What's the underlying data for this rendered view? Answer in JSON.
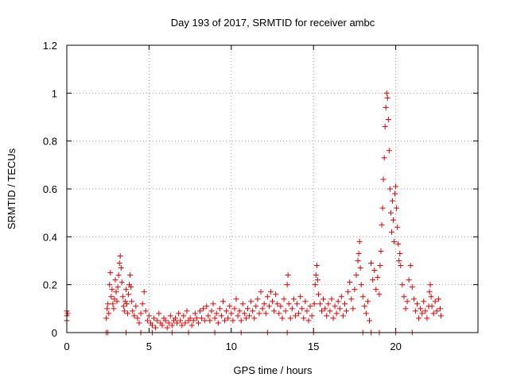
{
  "chart_data": {
    "type": "scatter",
    "title": "Day 193 of 2017, SRMTID for receiver ambc",
    "xlabel": "GPS time / hours",
    "ylabel": "SRMTID / TECUs",
    "xlim": [
      0,
      25
    ],
    "ylim": [
      0,
      1.2
    ],
    "x_ticks": [
      0,
      5,
      10,
      15,
      20
    ],
    "x_tick_labels": [
      "0",
      "5",
      "10",
      "15",
      "20"
    ],
    "y_ticks": [
      0,
      0.2,
      0.4,
      0.6,
      0.8,
      1.0,
      1.2
    ],
    "y_tick_labels": [
      "0",
      "0.2",
      "0.4",
      "0.6",
      "0.8",
      "1",
      "1.2"
    ],
    "grid": true,
    "marker": "plus",
    "marker_color": "#e60000",
    "legend": "none",
    "series": [
      {
        "values_xy": [
          [
            0.0,
            0.09
          ],
          [
            0.0,
            0.07
          ],
          [
            0.0,
            0.05
          ],
          [
            0.05,
            0.08
          ],
          [
            2.4,
            0.0
          ],
          [
            2.4,
            0.06
          ],
          [
            2.45,
            0.1
          ],
          [
            2.5,
            0.12
          ],
          [
            2.55,
            0.08
          ],
          [
            2.6,
            0.2
          ],
          [
            2.65,
            0.25
          ],
          [
            2.7,
            0.15
          ],
          [
            2.75,
            0.18
          ],
          [
            2.8,
            0.12
          ],
          [
            2.85,
            0.1
          ],
          [
            2.9,
            0.14
          ],
          [
            2.95,
            0.22
          ],
          [
            3.0,
            0.17
          ],
          [
            3.05,
            0.13
          ],
          [
            3.1,
            0.19
          ],
          [
            3.15,
            0.24
          ],
          [
            3.2,
            0.29
          ],
          [
            3.25,
            0.32
          ],
          [
            3.3,
            0.27
          ],
          [
            3.35,
            0.21
          ],
          [
            3.4,
            0.15
          ],
          [
            3.45,
            0.11
          ],
          [
            3.5,
            0.09
          ],
          [
            3.55,
            0.13
          ],
          [
            3.6,
            0.18
          ],
          [
            3.65,
            0.12
          ],
          [
            3.7,
            0.08
          ],
          [
            3.75,
            0.16
          ],
          [
            3.8,
            0.2
          ],
          [
            3.85,
            0.24
          ],
          [
            3.9,
            0.19
          ],
          [
            3.95,
            0.13
          ],
          [
            4.0,
            0.09
          ],
          [
            4.1,
            0.07
          ],
          [
            4.2,
            0.11
          ],
          [
            4.3,
            0.06
          ],
          [
            4.4,
            0.04
          ],
          [
            4.5,
            0.08
          ],
          [
            4.6,
            0.12
          ],
          [
            4.7,
            0.17
          ],
          [
            4.8,
            0.09
          ],
          [
            4.9,
            0.05
          ],
          [
            5.0,
            0.07
          ],
          [
            5.1,
            0.04
          ],
          [
            5.2,
            0.03
          ],
          [
            5.3,
            0.06
          ],
          [
            5.4,
            0.02
          ],
          [
            5.5,
            0.05
          ],
          [
            5.6,
            0.08
          ],
          [
            5.7,
            0.04
          ],
          [
            5.8,
            0.03
          ],
          [
            5.9,
            0.06
          ],
          [
            6.0,
            0.05
          ],
          [
            6.1,
            0.02
          ],
          [
            6.2,
            0.04
          ],
          [
            6.3,
            0.07
          ],
          [
            6.4,
            0.03
          ],
          [
            6.5,
            0.05
          ],
          [
            6.6,
            0.06
          ],
          [
            6.7,
            0.04
          ],
          [
            6.8,
            0.08
          ],
          [
            6.9,
            0.05
          ],
          [
            7.0,
            0.03
          ],
          [
            7.1,
            0.07
          ],
          [
            7.2,
            0.04
          ],
          [
            7.3,
            0.09
          ],
          [
            7.4,
            0.05
          ],
          [
            7.5,
            0.06
          ],
          [
            7.6,
            0.03
          ],
          [
            7.7,
            0.05
          ],
          [
            7.8,
            0.08
          ],
          [
            7.9,
            0.06
          ],
          [
            8.0,
            0.04
          ],
          [
            8.1,
            0.09
          ],
          [
            8.2,
            0.06
          ],
          [
            8.3,
            0.1
          ],
          [
            8.4,
            0.05
          ],
          [
            8.5,
            0.11
          ],
          [
            8.6,
            0.07
          ],
          [
            8.7,
            0.05
          ],
          [
            8.8,
            0.09
          ],
          [
            8.9,
            0.12
          ],
          [
            9.0,
            0.06
          ],
          [
            9.1,
            0.08
          ],
          [
            9.2,
            0.04
          ],
          [
            9.3,
            0.1
          ],
          [
            9.4,
            0.07
          ],
          [
            9.5,
            0.13
          ],
          [
            9.6,
            0.05
          ],
          [
            9.7,
            0.09
          ],
          [
            9.8,
            0.06
          ],
          [
            9.9,
            0.11
          ],
          [
            10.0,
            0.08
          ],
          [
            10.1,
            0.05
          ],
          [
            10.2,
            0.1
          ],
          [
            10.3,
            0.14
          ],
          [
            10.4,
            0.07
          ],
          [
            10.5,
            0.09
          ],
          [
            10.6,
            0.05
          ],
          [
            10.7,
            0.12
          ],
          [
            10.8,
            0.08
          ],
          [
            10.9,
            0.06
          ],
          [
            11.0,
            0.1
          ],
          [
            11.1,
            0.07
          ],
          [
            11.2,
            0.13
          ],
          [
            11.3,
            0.09
          ],
          [
            11.4,
            0.06
          ],
          [
            11.5,
            0.11
          ],
          [
            11.6,
            0.14
          ],
          [
            11.7,
            0.08
          ],
          [
            11.8,
            0.17
          ],
          [
            11.9,
            0.1
          ],
          [
            12.0,
            0.12
          ],
          [
            12.1,
            0.08
          ],
          [
            12.2,
            0.15
          ],
          [
            12.3,
            0.11
          ],
          [
            12.4,
            0.17
          ],
          [
            12.5,
            0.13
          ],
          [
            12.6,
            0.09
          ],
          [
            12.7,
            0.16
          ],
          [
            12.8,
            0.12
          ],
          [
            12.9,
            0.08
          ],
          [
            13.0,
            0.11
          ],
          [
            13.1,
            0.06
          ],
          [
            13.2,
            0.14
          ],
          [
            13.3,
            0.09
          ],
          [
            13.4,
            0.2
          ],
          [
            13.45,
            0.24
          ],
          [
            13.5,
            0.12
          ],
          [
            13.6,
            0.06
          ],
          [
            13.7,
            0.1
          ],
          [
            13.8,
            0.14
          ],
          [
            13.9,
            0.07
          ],
          [
            14.0,
            0.12
          ],
          [
            14.1,
            0.08
          ],
          [
            14.2,
            0.15
          ],
          [
            14.3,
            0.1
          ],
          [
            14.4,
            0.06
          ],
          [
            14.5,
            0.13
          ],
          [
            14.6,
            0.09
          ],
          [
            14.7,
            0.05
          ],
          [
            14.8,
            0.11
          ],
          [
            14.9,
            0.07
          ],
          [
            15.0,
            0.0
          ],
          [
            15.05,
            0.12
          ],
          [
            15.1,
            0.2
          ],
          [
            15.15,
            0.24
          ],
          [
            15.2,
            0.28
          ],
          [
            15.25,
            0.22
          ],
          [
            15.3,
            0.16
          ],
          [
            15.4,
            0.12
          ],
          [
            15.5,
            0.09
          ],
          [
            15.6,
            0.14
          ],
          [
            15.7,
            0.1
          ],
          [
            15.8,
            0.07
          ],
          [
            15.9,
            0.12
          ],
          [
            16.0,
            0.09
          ],
          [
            16.1,
            0.14
          ],
          [
            16.2,
            0.06
          ],
          [
            16.3,
            0.11
          ],
          [
            16.4,
            0.08
          ],
          [
            16.5,
            0.13
          ],
          [
            16.6,
            0.1
          ],
          [
            16.7,
            0.15
          ],
          [
            16.8,
            0.07
          ],
          [
            16.9,
            0.12
          ],
          [
            17.0,
            0.09
          ],
          [
            17.1,
            0.17
          ],
          [
            17.2,
            0.21
          ],
          [
            17.3,
            0.14
          ],
          [
            17.4,
            0.1
          ],
          [
            17.5,
            0.18
          ],
          [
            17.6,
            0.24
          ],
          [
            17.7,
            0.3
          ],
          [
            17.75,
            0.33
          ],
          [
            17.8,
            0.38
          ],
          [
            17.85,
            0.27
          ],
          [
            17.9,
            0.2
          ],
          [
            18.0,
            0.15
          ],
          [
            18.1,
            0.11
          ],
          [
            18.2,
            0.08
          ],
          [
            18.3,
            0.13
          ],
          [
            18.4,
            0.05
          ],
          [
            18.5,
            0.29
          ],
          [
            18.6,
            0.22
          ],
          [
            18.7,
            0.26
          ],
          [
            18.8,
            0.18
          ],
          [
            18.9,
            0.23
          ],
          [
            19.0,
            0.16
          ],
          [
            19.05,
            0.28
          ],
          [
            19.1,
            0.34
          ],
          [
            19.15,
            0.45
          ],
          [
            19.2,
            0.52
          ],
          [
            19.25,
            0.64
          ],
          [
            19.3,
            0.73
          ],
          [
            19.35,
            0.86
          ],
          [
            19.4,
            0.94
          ],
          [
            19.45,
            1.0
          ],
          [
            19.5,
            0.98
          ],
          [
            19.55,
            0.89
          ],
          [
            19.6,
            0.76
          ],
          [
            19.65,
            0.6
          ],
          [
            19.7,
            0.5
          ],
          [
            19.75,
            0.42
          ],
          [
            19.8,
            0.55
          ],
          [
            19.85,
            0.47
          ],
          [
            19.9,
            0.38
          ],
          [
            19.95,
            0.58
          ],
          [
            20.0,
            0.61
          ],
          [
            20.05,
            0.52
          ],
          [
            20.1,
            0.44
          ],
          [
            20.15,
            0.37
          ],
          [
            20.2,
            0.3
          ],
          [
            20.25,
            0.33
          ],
          [
            20.3,
            0.28
          ],
          [
            20.4,
            0.2
          ],
          [
            20.5,
            0.15
          ],
          [
            20.6,
            0.1
          ],
          [
            20.7,
            0.13
          ],
          [
            20.8,
            0.22
          ],
          [
            20.9,
            0.28
          ],
          [
            21.0,
            0.19
          ],
          [
            21.1,
            0.14
          ],
          [
            21.2,
            0.09
          ],
          [
            21.3,
            0.12
          ],
          [
            21.4,
            0.06
          ],
          [
            21.5,
            0.1
          ],
          [
            21.6,
            0.08
          ],
          [
            21.7,
            0.13
          ],
          [
            21.8,
            0.09
          ],
          [
            21.9,
            0.06
          ],
          [
            22.0,
            0.11
          ],
          [
            22.05,
            0.17
          ],
          [
            22.1,
            0.2
          ],
          [
            22.15,
            0.15
          ],
          [
            22.2,
            0.11
          ],
          [
            22.3,
            0.08
          ],
          [
            22.4,
            0.13
          ],
          [
            22.5,
            0.09
          ],
          [
            22.6,
            0.14
          ],
          [
            22.7,
            0.1
          ],
          [
            22.75,
            0.07
          ],
          [
            2.5,
            0.0
          ],
          [
            3.6,
            0.0
          ],
          [
            4.5,
            0.0
          ],
          [
            5.2,
            0.0
          ],
          [
            6.4,
            0.0
          ],
          [
            7.4,
            0.0
          ],
          [
            9.0,
            0.0
          ],
          [
            10.6,
            0.0
          ],
          [
            12.2,
            0.0
          ],
          [
            13.4,
            0.0
          ],
          [
            18.0,
            0.0
          ],
          [
            18.5,
            0.0
          ],
          [
            19.0,
            0.0
          ],
          [
            20.0,
            0.0
          ],
          [
            21.0,
            0.0
          ]
        ]
      }
    ]
  }
}
